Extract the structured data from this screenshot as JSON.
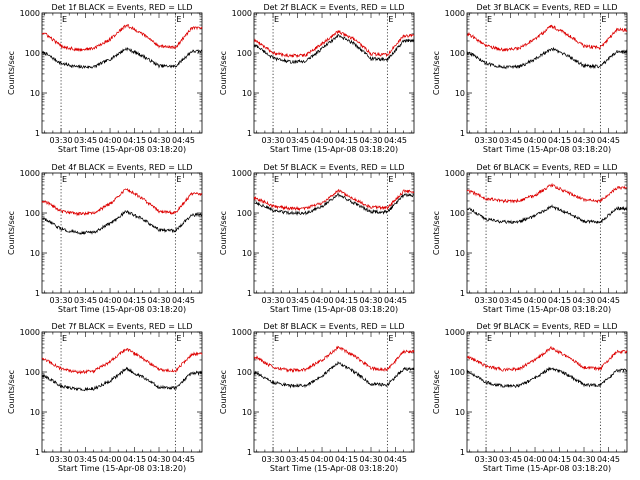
{
  "colors": {
    "events": "#000000",
    "lld": "#dd0000",
    "axis": "#000000"
  },
  "shared": {
    "ylabel": "Counts/sec",
    "xlabel": "Start Time (15-Apr-08 03:18:20)",
    "x_ticks": [
      "03:30",
      "03:45",
      "04:00",
      "04:15",
      "04:30",
      "04:45"
    ],
    "y_ticks": [
      "1",
      "10",
      "100",
      "1000"
    ],
    "corner_marks": [
      "E",
      "E"
    ]
  },
  "chart_data": [
    {
      "type": "line",
      "title": "Det 1f BLACK = Events, RED = LLD",
      "xlabel": "Start Time (15-Apr-08 03:18:20)",
      "ylabel": "Counts/sec",
      "ylim": [
        1,
        1000
      ],
      "yscale": "log",
      "x": [
        "03:20",
        "03:30",
        "03:40",
        "03:50",
        "04:00",
        "04:10",
        "04:20",
        "04:30",
        "04:40",
        "04:50"
      ],
      "series": [
        {
          "name": "Events",
          "values": [
            100,
            55,
            45,
            45,
            70,
            130,
            85,
            48,
            46,
            110
          ]
        },
        {
          "name": "LLD",
          "values": [
            310,
            150,
            120,
            130,
            220,
            500,
            300,
            150,
            135,
            420
          ]
        }
      ]
    },
    {
      "type": "line",
      "title": "Det 2f BLACK = Events, RED = LLD",
      "xlabel": "Start Time (15-Apr-08 03:18:20)",
      "ylabel": "Counts/sec",
      "ylim": [
        1,
        1000
      ],
      "yscale": "log",
      "x": [
        "03:20",
        "03:30",
        "03:40",
        "03:50",
        "04:00",
        "04:10",
        "04:20",
        "04:30",
        "04:40",
        "04:50"
      ],
      "series": [
        {
          "name": "Events",
          "values": [
            150,
            75,
            60,
            62,
            130,
            270,
            170,
            72,
            68,
            200
          ]
        },
        {
          "name": "LLD",
          "values": [
            200,
            100,
            85,
            88,
            170,
            350,
            220,
            95,
            90,
            270
          ]
        }
      ]
    },
    {
      "type": "line",
      "title": "Det 3f BLACK = Events, RED = LLD",
      "xlabel": "Start Time (15-Apr-08 03:18:20)",
      "ylabel": "Counts/sec",
      "ylim": [
        1,
        1000
      ],
      "yscale": "log",
      "x": [
        "03:20",
        "03:30",
        "03:40",
        "03:50",
        "04:00",
        "04:10",
        "04:20",
        "04:30",
        "04:40",
        "04:50"
      ],
      "series": [
        {
          "name": "Events",
          "values": [
            100,
            55,
            45,
            45,
            70,
            130,
            85,
            48,
            46,
            110
          ]
        },
        {
          "name": "LLD",
          "values": [
            290,
            150,
            120,
            130,
            220,
            480,
            290,
            150,
            135,
            380
          ]
        }
      ]
    },
    {
      "type": "line",
      "title": "Det 4f BLACK = Events, RED = LLD",
      "xlabel": "Start Time (15-Apr-08 03:18:20)",
      "ylabel": "Counts/sec",
      "ylim": [
        1,
        1000
      ],
      "yscale": "log",
      "x": [
        "03:20",
        "03:30",
        "03:40",
        "03:50",
        "04:00",
        "04:10",
        "04:20",
        "04:30",
        "04:40",
        "04:50"
      ],
      "series": [
        {
          "name": "Events",
          "values": [
            70,
            40,
            32,
            33,
            55,
            110,
            70,
            38,
            36,
            90
          ]
        },
        {
          "name": "LLD",
          "values": [
            200,
            110,
            95,
            100,
            170,
            400,
            230,
            110,
            100,
            300
          ]
        }
      ]
    },
    {
      "type": "line",
      "title": "Det 5f BLACK = Events, RED = LLD",
      "xlabel": "Start Time (15-Apr-08 03:18:20)",
      "ylabel": "Counts/sec",
      "ylim": [
        1,
        1000
      ],
      "yscale": "log",
      "x": [
        "03:20",
        "03:30",
        "03:40",
        "03:50",
        "04:00",
        "04:10",
        "04:20",
        "04:30",
        "04:40",
        "04:50"
      ],
      "series": [
        {
          "name": "Events",
          "values": [
            180,
            115,
            100,
            100,
            145,
            290,
            175,
            108,
            105,
            280
          ]
        },
        {
          "name": "LLD",
          "values": [
            230,
            150,
            130,
            130,
            180,
            360,
            220,
            140,
            135,
            350
          ]
        }
      ]
    },
    {
      "type": "line",
      "title": "Det 6f BLACK = Events, RED = LLD",
      "xlabel": "Start Time (15-Apr-08 03:18:20)",
      "ylabel": "Counts/sec",
      "ylim": [
        1,
        1000
      ],
      "yscale": "log",
      "x": [
        "03:20",
        "03:30",
        "03:40",
        "03:50",
        "04:00",
        "04:10",
        "04:20",
        "04:30",
        "04:40",
        "04:50"
      ],
      "series": [
        {
          "name": "Events",
          "values": [
            130,
            70,
            60,
            60,
            85,
            150,
            100,
            62,
            60,
            130
          ]
        },
        {
          "name": "LLD",
          "values": [
            350,
            230,
            200,
            200,
            280,
            500,
            330,
            210,
            200,
            420
          ]
        }
      ]
    },
    {
      "type": "line",
      "title": "Det 7f BLACK = Events, RED = LLD",
      "xlabel": "Start Time (15-Apr-08 03:18:20)",
      "ylabel": "Counts/sec",
      "ylim": [
        1,
        1000
      ],
      "yscale": "log",
      "x": [
        "03:20",
        "03:30",
        "03:40",
        "03:50",
        "04:00",
        "04:10",
        "04:20",
        "04:30",
        "04:40",
        "04:50"
      ],
      "series": [
        {
          "name": "Events",
          "values": [
            80,
            45,
            37,
            38,
            60,
            120,
            75,
            42,
            40,
            95
          ]
        },
        {
          "name": "LLD",
          "values": [
            210,
            120,
            100,
            105,
            180,
            380,
            220,
            115,
            105,
            280
          ]
        }
      ]
    },
    {
      "type": "line",
      "title": "Det 8f BLACK = Events, RED = LLD",
      "xlabel": "Start Time (15-Apr-08 03:18:20)",
      "ylabel": "Counts/sec",
      "ylim": [
        1,
        1000
      ],
      "yscale": "log",
      "x": [
        "03:20",
        "03:30",
        "03:40",
        "03:50",
        "04:00",
        "04:10",
        "04:20",
        "04:30",
        "04:40",
        "04:50"
      ],
      "series": [
        {
          "name": "Events",
          "values": [
            95,
            55,
            45,
            46,
            80,
            170,
            100,
            50,
            48,
            120
          ]
        },
        {
          "name": "LLD",
          "values": [
            230,
            130,
            110,
            115,
            200,
            420,
            250,
            125,
            115,
            320
          ]
        }
      ]
    },
    {
      "type": "line",
      "title": "Det 9f BLACK = Events, RED = LLD",
      "xlabel": "Start Time (15-Apr-08 03:18:20)",
      "ylabel": "Counts/sec",
      "ylim": [
        1,
        1000
      ],
      "yscale": "log",
      "x": [
        "03:20",
        "03:30",
        "03:40",
        "03:50",
        "04:00",
        "04:10",
        "04:20",
        "04:30",
        "04:40",
        "04:50"
      ],
      "series": [
        {
          "name": "Events",
          "values": [
            100,
            55,
            45,
            45,
            70,
            130,
            85,
            48,
            46,
            110
          ]
        },
        {
          "name": "LLD",
          "values": [
            230,
            140,
            115,
            120,
            200,
            400,
            240,
            130,
            120,
            320
          ]
        }
      ]
    }
  ]
}
